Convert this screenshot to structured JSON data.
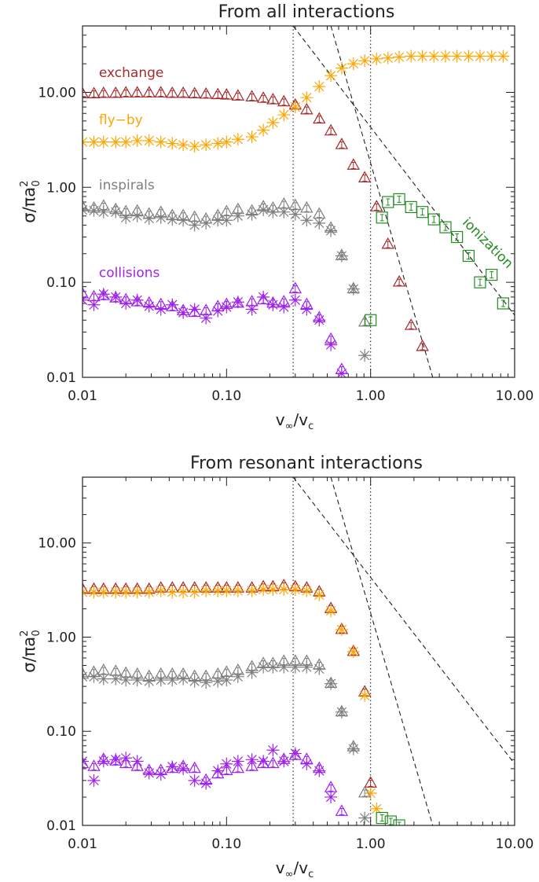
{
  "chart_data": [
    {
      "type": "scatter",
      "title": "From all interactions",
      "xlabel_base": "v",
      "xlabel_sub1": "∞",
      "xlabel_sub2": "c",
      "ylabel_main": "σ",
      "ylabel_den": "πa",
      "ylabel_sub": "0",
      "ylabel_sup": "2",
      "x_scale": "log",
      "y_scale": "log",
      "xlim": [
        0.01,
        10
      ],
      "ylim": [
        0.01,
        50
      ],
      "xticks": [
        {
          "v": 0.01,
          "label": "0.01"
        },
        {
          "v": 0.1,
          "label": "0.10"
        },
        {
          "v": 1,
          "label": "1.00"
        },
        {
          "v": 10,
          "label": "10.00"
        }
      ],
      "yticks": [
        {
          "v": 0.01,
          "label": "0.01"
        },
        {
          "v": 0.1,
          "label": "0.10"
        },
        {
          "v": 1,
          "label": "1.00"
        },
        {
          "v": 10,
          "label": "10.00"
        }
      ],
      "vlines": [
        0.29,
        1.0
      ],
      "dashed_lines": [
        {
          "p1": [
            0.29,
            50
          ],
          "p2": [
            10,
            0.045
          ]
        },
        {
          "p1": [
            0.53,
            50
          ],
          "p2": [
            2.7,
            0.01
          ]
        }
      ],
      "annotations": [
        {
          "text": "exchange",
          "x": 0.013,
          "y": 14.5,
          "color": "#a52a2a",
          "rotate": 0
        },
        {
          "text": "fly−by",
          "x": 0.013,
          "y": 4.6,
          "color": "#ffa500",
          "rotate": 0
        },
        {
          "text": "inspirals",
          "x": 0.013,
          "y": 0.95,
          "color": "#7f7f7f",
          "rotate": 0
        },
        {
          "text": "collisions",
          "x": 0.013,
          "y": 0.113,
          "color": "#a020f0",
          "rotate": 0
        },
        {
          "text": "ionization",
          "x": 4.3,
          "y": 0.42,
          "color": "#228b22",
          "rotate": 45
        }
      ],
      "series": [
        {
          "name": "exchange",
          "marker": "triangle",
          "color": "#a52a2a",
          "x": [
            0.01,
            0.012,
            0.014,
            0.017,
            0.02,
            0.024,
            0.029,
            0.035,
            0.042,
            0.05,
            0.06,
            0.072,
            0.087,
            0.1,
            0.12,
            0.15,
            0.18,
            0.21,
            0.25,
            0.3,
            0.36,
            0.44,
            0.53,
            0.63,
            0.76,
            0.91,
            1.1,
            1.32,
            1.58,
            1.91,
            2.29
          ],
          "y": [
            9.6,
            9.6,
            9.7,
            9.7,
            9.8,
            9.8,
            9.8,
            9.8,
            9.7,
            9.7,
            9.6,
            9.5,
            9.4,
            9.3,
            9.1,
            8.9,
            8.6,
            8.3,
            7.9,
            7.3,
            6.5,
            5.2,
            3.9,
            2.8,
            1.7,
            1.25,
            0.62,
            0.25,
            0.1,
            0.035,
            0.021
          ]
        },
        {
          "name": "fly-by",
          "marker": "asterisk",
          "color": "#ffa500",
          "x": [
            0.01,
            0.012,
            0.014,
            0.017,
            0.02,
            0.024,
            0.029,
            0.035,
            0.042,
            0.05,
            0.06,
            0.072,
            0.087,
            0.1,
            0.12,
            0.15,
            0.18,
            0.21,
            0.25,
            0.3,
            0.36,
            0.44,
            0.53,
            0.63,
            0.76,
            0.91,
            1.1,
            1.32,
            1.58,
            1.91,
            2.29,
            2.75,
            3.31,
            3.98,
            4.79,
            5.75,
            6.92,
            8.32
          ],
          "y": [
            3.0,
            3.0,
            3.0,
            3.0,
            3.0,
            3.1,
            3.1,
            3.0,
            2.9,
            2.8,
            2.7,
            2.8,
            2.9,
            3.0,
            3.2,
            3.4,
            4.0,
            4.8,
            5.8,
            7.0,
            8.8,
            11.5,
            15.0,
            18.0,
            20.0,
            21.5,
            22.5,
            23.0,
            23.5,
            24.0,
            24.0,
            24.0,
            24.0,
            24.0,
            24.0,
            24.0,
            24.0,
            24.0
          ]
        },
        {
          "name": "inspirals-triangle",
          "marker": "triangle",
          "color": "#7f7f7f",
          "x": [
            0.01,
            0.012,
            0.014,
            0.017,
            0.02,
            0.024,
            0.029,
            0.035,
            0.042,
            0.05,
            0.06,
            0.072,
            0.087,
            0.1,
            0.12,
            0.15,
            0.18,
            0.21,
            0.25,
            0.3,
            0.36,
            0.44,
            0.53,
            0.63,
            0.76,
            0.91
          ],
          "y": [
            0.62,
            0.6,
            0.63,
            0.58,
            0.55,
            0.56,
            0.52,
            0.54,
            0.5,
            0.5,
            0.48,
            0.46,
            0.5,
            0.55,
            0.58,
            0.56,
            0.62,
            0.6,
            0.66,
            0.64,
            0.6,
            0.52,
            0.37,
            0.19,
            0.085,
            0.038
          ]
        },
        {
          "name": "inspirals-asterisk",
          "marker": "asterisk",
          "color": "#7f7f7f",
          "x": [
            0.01,
            0.012,
            0.014,
            0.017,
            0.02,
            0.024,
            0.029,
            0.035,
            0.042,
            0.05,
            0.06,
            0.072,
            0.087,
            0.1,
            0.12,
            0.15,
            0.18,
            0.21,
            0.25,
            0.3,
            0.36,
            0.44,
            0.53,
            0.63,
            0.76,
            0.91
          ],
          "y": [
            0.58,
            0.57,
            0.55,
            0.55,
            0.48,
            0.5,
            0.47,
            0.48,
            0.46,
            0.45,
            0.4,
            0.42,
            0.45,
            0.45,
            0.5,
            0.52,
            0.58,
            0.55,
            0.55,
            0.52,
            0.45,
            0.42,
            0.35,
            0.19,
            0.085,
            0.017
          ]
        },
        {
          "name": "collisions-triangle",
          "marker": "triangle",
          "color": "#a020f0",
          "x": [
            0.01,
            0.012,
            0.014,
            0.017,
            0.02,
            0.024,
            0.029,
            0.035,
            0.042,
            0.05,
            0.06,
            0.072,
            0.087,
            0.1,
            0.12,
            0.15,
            0.18,
            0.21,
            0.25,
            0.3,
            0.36,
            0.44,
            0.53,
            0.63
          ],
          "y": [
            0.075,
            0.07,
            0.072,
            0.068,
            0.065,
            0.062,
            0.06,
            0.058,
            0.055,
            0.05,
            0.048,
            0.05,
            0.055,
            0.058,
            0.06,
            0.062,
            0.065,
            0.06,
            0.062,
            0.085,
            0.058,
            0.042,
            0.025,
            0.012
          ]
        },
        {
          "name": "collisions-asterisk",
          "marker": "asterisk",
          "color": "#a020f0",
          "x": [
            0.01,
            0.012,
            0.014,
            0.017,
            0.02,
            0.024,
            0.029,
            0.035,
            0.042,
            0.05,
            0.06,
            0.072,
            0.087,
            0.1,
            0.12,
            0.15,
            0.18,
            0.21,
            0.25,
            0.3,
            0.36,
            0.44,
            0.53,
            0.63
          ],
          "y": [
            0.065,
            0.058,
            0.075,
            0.07,
            0.06,
            0.065,
            0.056,
            0.052,
            0.058,
            0.048,
            0.052,
            0.042,
            0.05,
            0.055,
            0.062,
            0.052,
            0.07,
            0.058,
            0.055,
            0.065,
            0.052,
            0.04,
            0.022,
            0.011
          ]
        },
        {
          "name": "ionization",
          "marker": "square",
          "color": "#228b22",
          "x": [
            1.0,
            1.2,
            1.32,
            1.58,
            1.91,
            2.29,
            2.75,
            3.31,
            3.98,
            4.79,
            5.75,
            6.92,
            8.32
          ],
          "y": [
            0.04,
            0.48,
            0.7,
            0.75,
            0.62,
            0.55,
            0.46,
            0.38,
            0.3,
            0.19,
            0.1,
            0.12,
            0.06
          ]
        }
      ]
    },
    {
      "type": "scatter",
      "title": "From resonant interactions",
      "xlabel_base": "v",
      "xlabel_sub1": "∞",
      "xlabel_sub2": "c",
      "ylabel_main": "σ",
      "ylabel_den": "πa",
      "ylabel_sub": "0",
      "ylabel_sup": "2",
      "x_scale": "log",
      "y_scale": "log",
      "xlim": [
        0.01,
        10
      ],
      "ylim": [
        0.01,
        50
      ],
      "xticks": [
        {
          "v": 0.01,
          "label": "0.01"
        },
        {
          "v": 0.1,
          "label": "0.10"
        },
        {
          "v": 1,
          "label": "1.00"
        },
        {
          "v": 10,
          "label": "10.00"
        }
      ],
      "yticks": [
        {
          "v": 0.01,
          "label": "0.01"
        },
        {
          "v": 0.1,
          "label": "0.10"
        },
        {
          "v": 1,
          "label": "1.00"
        },
        {
          "v": 10,
          "label": "10.00"
        }
      ],
      "vlines": [
        0.29,
        1.0
      ],
      "dashed_lines": [
        {
          "p1": [
            0.29,
            50
          ],
          "p2": [
            10,
            0.045
          ]
        },
        {
          "p1": [
            0.53,
            50
          ],
          "p2": [
            2.7,
            0.01
          ]
        }
      ],
      "annotations": [],
      "series": [
        {
          "name": "exchange",
          "marker": "triangle",
          "color": "#a52a2a",
          "x": [
            0.01,
            0.012,
            0.014,
            0.017,
            0.02,
            0.024,
            0.029,
            0.035,
            0.042,
            0.05,
            0.06,
            0.072,
            0.087,
            0.1,
            0.12,
            0.15,
            0.18,
            0.21,
            0.25,
            0.3,
            0.36,
            0.44,
            0.53,
            0.63,
            0.76,
            0.91,
            1.0
          ],
          "y": [
            3.2,
            3.2,
            3.2,
            3.2,
            3.2,
            3.2,
            3.2,
            3.3,
            3.3,
            3.3,
            3.3,
            3.3,
            3.3,
            3.3,
            3.3,
            3.3,
            3.4,
            3.4,
            3.5,
            3.4,
            3.3,
            3.0,
            2.0,
            1.2,
            0.7,
            0.26,
            0.028
          ]
        },
        {
          "name": "fly-by",
          "marker": "asterisk",
          "color": "#ffa500",
          "x": [
            0.01,
            0.012,
            0.014,
            0.017,
            0.02,
            0.024,
            0.029,
            0.035,
            0.042,
            0.05,
            0.06,
            0.072,
            0.087,
            0.1,
            0.12,
            0.15,
            0.18,
            0.21,
            0.25,
            0.3,
            0.36,
            0.44,
            0.53,
            0.63,
            0.76,
            0.91,
            1.0,
            1.1
          ],
          "y": [
            3.0,
            3.0,
            3.0,
            3.0,
            3.0,
            3.0,
            3.0,
            3.1,
            3.0,
            3.0,
            3.0,
            3.1,
            3.1,
            3.1,
            3.1,
            3.1,
            3.2,
            3.2,
            3.2,
            3.2,
            3.1,
            2.8,
            1.9,
            1.2,
            0.7,
            0.24,
            0.022,
            0.015
          ]
        },
        {
          "name": "inspirals-triangle",
          "marker": "triangle",
          "color": "#7f7f7f",
          "x": [
            0.01,
            0.012,
            0.014,
            0.017,
            0.02,
            0.024,
            0.029,
            0.035,
            0.042,
            0.05,
            0.06,
            0.072,
            0.087,
            0.1,
            0.12,
            0.15,
            0.18,
            0.21,
            0.25,
            0.3,
            0.36,
            0.44,
            0.53,
            0.63,
            0.76,
            0.91
          ],
          "y": [
            0.4,
            0.42,
            0.44,
            0.43,
            0.41,
            0.4,
            0.38,
            0.4,
            0.4,
            0.4,
            0.38,
            0.38,
            0.4,
            0.42,
            0.44,
            0.48,
            0.52,
            0.52,
            0.55,
            0.55,
            0.55,
            0.5,
            0.32,
            0.16,
            0.068,
            0.022
          ]
        },
        {
          "name": "inspirals-asterisk",
          "marker": "asterisk",
          "color": "#7f7f7f",
          "x": [
            0.01,
            0.012,
            0.014,
            0.017,
            0.02,
            0.024,
            0.029,
            0.035,
            0.042,
            0.05,
            0.06,
            0.072,
            0.087,
            0.1,
            0.12,
            0.15,
            0.18,
            0.21,
            0.25,
            0.3,
            0.36,
            0.44,
            0.53,
            0.63,
            0.76,
            0.91
          ],
          "y": [
            0.38,
            0.38,
            0.36,
            0.36,
            0.35,
            0.35,
            0.34,
            0.35,
            0.35,
            0.36,
            0.34,
            0.33,
            0.34,
            0.35,
            0.38,
            0.42,
            0.48,
            0.48,
            0.48,
            0.48,
            0.48,
            0.46,
            0.32,
            0.16,
            0.065,
            0.012
          ]
        },
        {
          "name": "collisions-triangle",
          "marker": "triangle",
          "color": "#a020f0",
          "x": [
            0.01,
            0.012,
            0.014,
            0.017,
            0.02,
            0.024,
            0.029,
            0.035,
            0.042,
            0.05,
            0.06,
            0.072,
            0.087,
            0.1,
            0.12,
            0.15,
            0.18,
            0.21,
            0.25,
            0.3,
            0.36,
            0.44,
            0.53,
            0.63
          ],
          "y": [
            0.045,
            0.042,
            0.05,
            0.048,
            0.045,
            0.042,
            0.038,
            0.038,
            0.04,
            0.042,
            0.04,
            0.03,
            0.035,
            0.038,
            0.04,
            0.042,
            0.045,
            0.045,
            0.05,
            0.055,
            0.05,
            0.04,
            0.025,
            0.014
          ]
        },
        {
          "name": "collisions-asterisk",
          "marker": "asterisk",
          "color": "#a020f0",
          "x": [
            0.01,
            0.012,
            0.014,
            0.017,
            0.02,
            0.024,
            0.029,
            0.035,
            0.042,
            0.05,
            0.06,
            0.072,
            0.087,
            0.1,
            0.12,
            0.15,
            0.18,
            0.21,
            0.25,
            0.3,
            0.36,
            0.44,
            0.53
          ],
          "y": [
            0.048,
            0.03,
            0.048,
            0.05,
            0.052,
            0.048,
            0.036,
            0.035,
            0.042,
            0.04,
            0.03,
            0.028,
            0.038,
            0.045,
            0.048,
            0.05,
            0.048,
            0.063,
            0.048,
            0.058,
            0.045,
            0.038,
            0.02
          ]
        },
        {
          "name": "ionization",
          "marker": "square",
          "color": "#228b22",
          "x": [
            1.2,
            1.38,
            1.58
          ],
          "y": [
            0.012,
            0.011,
            0.01
          ]
        }
      ]
    }
  ]
}
